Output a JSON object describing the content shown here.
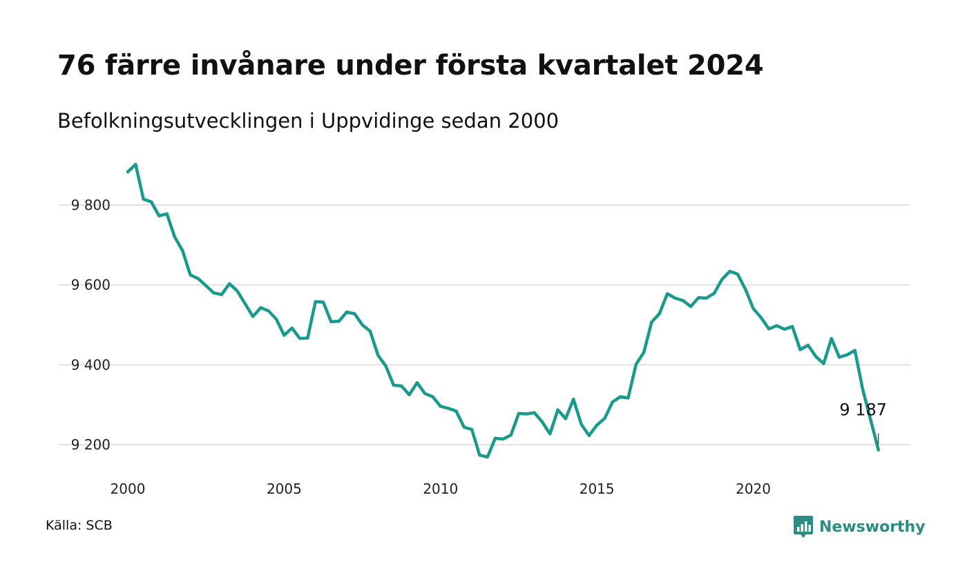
{
  "title": "76 färre invånare under första kvartalet 2024",
  "subtitle": "Befolkningsutvecklingen i Uppvidinge sedan 2000",
  "source": "Källa: SCB",
  "brand": {
    "name": "Newsworthy",
    "icon": "newsworthy-logo-icon",
    "color": "#2a8c82"
  },
  "chart_data": {
    "type": "line",
    "title": "76 färre invånare under första kvartalet 2024",
    "xlabel": "",
    "ylabel": "",
    "xlim": [
      2000,
      2024.25
    ],
    "ylim": [
      9120,
      9940
    ],
    "x_ticks": [
      {
        "value": 2000,
        "label": "2000"
      },
      {
        "value": 2005,
        "label": "2005"
      },
      {
        "value": 2010,
        "label": "2010"
      },
      {
        "value": 2015,
        "label": "2015"
      },
      {
        "value": 2020,
        "label": "2020"
      }
    ],
    "y_ticks": [
      {
        "value": 9200,
        "label": "9 200"
      },
      {
        "value": 9400,
        "label": "9 400"
      },
      {
        "value": 9600,
        "label": "9 600"
      },
      {
        "value": 9800,
        "label": "9 800"
      }
    ],
    "grid": "horizontal",
    "line_color": "#1a9a8c",
    "last_label": "9 187",
    "series": [
      {
        "x": [
          2000,
          2000.25,
          2000.5,
          2000.75,
          2001,
          2001.25,
          2001.5,
          2001.75,
          2002,
          2002.25,
          2002.5,
          2002.75,
          2003,
          2003.25,
          2003.5,
          2003.75,
          2004,
          2004.25,
          2004.5,
          2004.75,
          2005,
          2005.25,
          2005.5,
          2005.75,
          2006,
          2006.25,
          2006.5,
          2006.75,
          2007,
          2007.25,
          2007.5,
          2007.75,
          2008,
          2008.25,
          2008.5,
          2008.75,
          2009,
          2009.25,
          2009.5,
          2009.75,
          2010,
          2010.25,
          2010.5,
          2010.75,
          2011,
          2011.25,
          2011.5,
          2011.75,
          2012,
          2012.25,
          2012.5,
          2012.75,
          2013,
          2013.25,
          2013.5,
          2013.75,
          2014,
          2014.25,
          2014.5,
          2014.75,
          2015,
          2015.25,
          2015.5,
          2015.75,
          2016,
          2016.25,
          2016.5,
          2016.75,
          2017,
          2017.25,
          2017.5,
          2017.75,
          2018,
          2018.25,
          2018.5,
          2018.75,
          2019,
          2019.25,
          2019.5,
          2019.75,
          2020,
          2020.25,
          2020.5,
          2020.75,
          2021,
          2021.25,
          2021.5,
          2021.75,
          2022,
          2022.25,
          2022.5,
          2022.75,
          2023,
          2023.25,
          2023.5,
          2023.75,
          2024
        ],
        "values": [
          9883,
          9902,
          9815,
          9808,
          9773,
          9778,
          9720,
          9686,
          9625,
          9616,
          9598,
          9580,
          9576,
          9603,
          9585,
          9553,
          9521,
          9543,
          9535,
          9514,
          9474,
          9492,
          9466,
          9467,
          9558,
          9557,
          9508,
          9509,
          9532,
          9528,
          9500,
          9484,
          9424,
          9397,
          9349,
          9347,
          9325,
          9355,
          9328,
          9320,
          9296,
          9291,
          9284,
          9244,
          9238,
          9174,
          9169,
          9216,
          9214,
          9224,
          9278,
          9277,
          9280,
          9257,
          9227,
          9287,
          9265,
          9314,
          9251,
          9223,
          9249,
          9266,
          9307,
          9320,
          9317,
          9401,
          9431,
          9507,
          9528,
          9578,
          9567,
          9561,
          9546,
          9568,
          9567,
          9579,
          9614,
          9634,
          9627,
          9589,
          9541,
          9518,
          9490,
          9498,
          9489,
          9496,
          9438,
          9449,
          9421,
          9403,
          9466,
          9419,
          9425,
          9436,
          9338,
          9263,
          9187
        ]
      }
    ]
  }
}
